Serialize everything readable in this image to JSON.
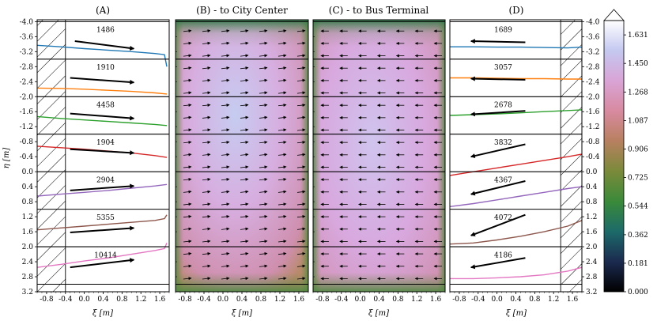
{
  "figure": {
    "panel_titles": [
      "(A)",
      "(B) - to City Center",
      "(C) - to Bus Terminal",
      "(D)"
    ],
    "ylabel": "η [m]",
    "xlabel": "ξ [m]",
    "colorbar": {
      "ticks": [
        "0.000",
        "0.181",
        "0.362",
        "0.544",
        "0.725",
        "0.906",
        "1.087",
        "1.268",
        "1.450",
        "1.631"
      ],
      "min": 0.0,
      "max": 1.722,
      "extend": "max",
      "colormap_stops": [
        "#000000",
        "#1b2a4f",
        "#1d6a6a",
        "#3a8a3a",
        "#7a8a3a",
        "#b88060",
        "#d88aa0",
        "#d9a4d6",
        "#c4c8f0",
        "#ffffff"
      ]
    }
  },
  "chart_data": [
    {
      "type": "line",
      "panel": "A",
      "title": "(A)",
      "xlabel": "ξ [m]",
      "ylabel": "η [m]",
      "xticks": [
        "-0.8",
        "-0.4",
        "0.0",
        "0.4",
        "0.8",
        "1.2",
        "1.6"
      ],
      "xlim": [
        -1.0,
        1.8
      ],
      "yticks": [
        "-4.0",
        "-3.6",
        "-3.2",
        "-2.8",
        "-2.4",
        "-2.0",
        "-1.6",
        "-1.2",
        "-0.8",
        "-0.4",
        "0.0",
        "0.4",
        "0.8",
        "1.2",
        "1.6",
        "2.0",
        "2.4",
        "2.8",
        "3.2"
      ],
      "ylim": [
        -4.05,
        3.2
      ],
      "lane_boundaries": [
        -4.0,
        -3.0,
        -2.0,
        -1.0,
        0.0,
        1.0,
        2.0,
        3.0
      ],
      "hatch_region": [
        -1.0,
        -0.4
      ],
      "series": [
        {
          "name": "lane1",
          "count": "1486",
          "color": "#1f77b4",
          "x": [
            -1.0,
            -0.5,
            0.0,
            0.5,
            1.0,
            1.5,
            1.7,
            1.75
          ],
          "y": [
            -3.37,
            -3.33,
            -3.28,
            -3.24,
            -3.2,
            -3.15,
            -3.12,
            -2.8
          ],
          "arrow_x": [
            -0.2,
            1.05
          ],
          "arrow_y": [
            -3.48,
            -3.28
          ],
          "arrow_dir": "right"
        },
        {
          "name": "lane2",
          "count": "1910",
          "color": "#ff7f0e",
          "x": [
            -1.0,
            -0.5,
            0.0,
            0.5,
            1.0,
            1.5,
            1.75
          ],
          "y": [
            -2.23,
            -2.22,
            -2.2,
            -2.17,
            -2.14,
            -2.1,
            -2.07
          ],
          "arrow_x": [
            -0.3,
            1.05
          ],
          "arrow_y": [
            -2.5,
            -2.38
          ],
          "arrow_dir": "right"
        },
        {
          "name": "lane3",
          "count": "4458",
          "color": "#2ca02c",
          "x": [
            -1.0,
            -0.5,
            0.0,
            0.5,
            1.0,
            1.5,
            1.75
          ],
          "y": [
            -1.47,
            -1.42,
            -1.38,
            -1.34,
            -1.3,
            -1.26,
            -1.23
          ],
          "arrow_x": [
            -0.3,
            1.05
          ],
          "arrow_y": [
            -1.55,
            -1.42
          ],
          "arrow_dir": "right"
        },
        {
          "name": "lane4",
          "count": "1904",
          "color": "#d62728",
          "x": [
            -1.0,
            -0.5,
            0.0,
            0.5,
            1.0,
            1.5,
            1.75
          ],
          "y": [
            -0.68,
            -0.64,
            -0.6,
            -0.55,
            -0.5,
            -0.43,
            -0.38
          ],
          "arrow_x": [
            -0.3,
            1.05
          ],
          "arrow_y": [
            -0.6,
            -0.5
          ],
          "arrow_dir": "right"
        },
        {
          "name": "lane5",
          "count": "2904",
          "color": "#9467bd",
          "x": [
            -1.0,
            -0.5,
            0.0,
            0.5,
            1.0,
            1.5,
            1.75
          ],
          "y": [
            0.65,
            0.6,
            0.55,
            0.5,
            0.44,
            0.38,
            0.34
          ],
          "arrow_x": [
            -0.3,
            1.05
          ],
          "arrow_y": [
            0.5,
            0.38
          ],
          "arrow_dir": "right"
        },
        {
          "name": "lane6",
          "count": "5355",
          "color": "#8c564b",
          "x": [
            -1.0,
            -0.5,
            0.0,
            0.5,
            1.0,
            1.5,
            1.7,
            1.75
          ],
          "y": [
            1.55,
            1.5,
            1.45,
            1.4,
            1.35,
            1.3,
            1.25,
            1.15
          ],
          "arrow_x": [
            -0.3,
            1.05
          ],
          "arrow_y": [
            1.62,
            1.5
          ],
          "arrow_dir": "right"
        },
        {
          "name": "lane7",
          "count": "10414",
          "color": "#e377c2",
          "x": [
            -1.0,
            -0.5,
            0.0,
            0.5,
            1.0,
            1.5,
            1.7,
            1.75
          ],
          "y": [
            2.55,
            2.47,
            2.38,
            2.3,
            2.2,
            2.1,
            2.05,
            1.9
          ],
          "arrow_x": [
            -0.3,
            1.05
          ],
          "arrow_y": [
            2.55,
            2.35
          ],
          "arrow_dir": "right"
        }
      ]
    },
    {
      "type": "heatmap",
      "panel": "B",
      "title": "(B) - to City Center",
      "xlabel": "ξ [m]",
      "xticks": [
        "-0.8",
        "-0.4",
        "0.0",
        "0.4",
        "0.8",
        "1.2",
        "1.6"
      ],
      "xlim": [
        -1.0,
        1.8
      ],
      "yticks": [
        "-4.0",
        "-3.6",
        "-3.2",
        "-2.8",
        "-2.4",
        "-2.0",
        "-1.6",
        "-1.2",
        "-0.8",
        "-0.4",
        "0.0",
        "0.4",
        "0.8",
        "1.2",
        "1.6",
        "2.0",
        "2.4",
        "2.8",
        "3.2"
      ],
      "ylim": [
        -4.05,
        3.2
      ],
      "lane_boundaries": [
        -4.0,
        -3.0,
        -2.0,
        -1.0,
        0.0,
        1.0,
        2.0,
        3.0
      ],
      "value_range": [
        0.6,
        1.5
      ],
      "quiver_direction": "right, slightly rising"
    },
    {
      "type": "heatmap",
      "panel": "C",
      "title": "(C) - to Bus Terminal",
      "xlabel": "ξ [m]",
      "xticks": [
        "-0.8",
        "-0.4",
        "0.0",
        "0.4",
        "0.8",
        "1.2",
        "1.6"
      ],
      "xlim": [
        -1.0,
        1.8
      ],
      "yticks": [
        "-4.0",
        "-3.6",
        "-3.2",
        "-2.8",
        "-2.4",
        "-2.0",
        "-1.6",
        "-1.2",
        "-0.8",
        "-0.4",
        "0.0",
        "0.4",
        "0.8",
        "1.2",
        "1.6",
        "2.0",
        "2.4",
        "2.8",
        "3.2"
      ],
      "ylim": [
        -4.05,
        3.2
      ],
      "lane_boundaries": [
        -4.0,
        -3.0,
        -2.0,
        -1.0,
        0.0,
        1.0,
        2.0,
        3.0
      ],
      "value_range": [
        0.6,
        1.5
      ],
      "quiver_direction": "left"
    },
    {
      "type": "line",
      "panel": "D",
      "title": "(D)",
      "xlabel": "ξ [m]",
      "xticks": [
        "-0.8",
        "-0.4",
        "0.0",
        "0.4",
        "0.8",
        "1.2",
        "1.6"
      ],
      "xlim": [
        -1.0,
        1.8
      ],
      "yticks": [
        "-4.0",
        "-3.6",
        "-3.2",
        "-2.8",
        "-2.4",
        "-2.0",
        "-1.6",
        "-1.2",
        "-0.8",
        "-0.4",
        "0.0",
        "0.4",
        "0.8",
        "1.2",
        "1.6",
        "2.0",
        "2.4",
        "2.8",
        "3.2"
      ],
      "ylim": [
        -4.05,
        3.2
      ],
      "lane_boundaries": [
        -4.0,
        -3.0,
        -2.0,
        -1.0,
        0.0,
        1.0,
        2.0,
        3.0
      ],
      "hatch_region": [
        1.35,
        1.8
      ],
      "series": [
        {
          "name": "lane1",
          "count": "1689",
          "color": "#1f77b4",
          "x": [
            -1.0,
            -0.5,
            0.0,
            0.5,
            1.0,
            1.5,
            1.8
          ],
          "y": [
            -3.33,
            -3.33,
            -3.32,
            -3.32,
            -3.31,
            -3.3,
            -3.32
          ],
          "arrow_x": [
            0.6,
            -0.55
          ],
          "arrow_y": [
            -3.45,
            -3.48
          ],
          "arrow_dir": "left"
        },
        {
          "name": "lane2",
          "count": "3057",
          "color": "#ff7f0e",
          "x": [
            -1.0,
            -0.5,
            0.0,
            0.5,
            1.0,
            1.5,
            1.8
          ],
          "y": [
            -2.5,
            -2.5,
            -2.49,
            -2.48,
            -2.48,
            -2.47,
            -2.47
          ],
          "arrow_x": [
            0.6,
            -0.55
          ],
          "arrow_y": [
            -2.45,
            -2.48
          ],
          "arrow_dir": "left"
        },
        {
          "name": "lane3",
          "count": "2678",
          "color": "#2ca02c",
          "x": [
            -1.0,
            -0.5,
            0.0,
            0.5,
            1.0,
            1.5,
            1.8
          ],
          "y": [
            -1.5,
            -1.52,
            -1.54,
            -1.57,
            -1.6,
            -1.63,
            -1.65
          ],
          "arrow_x": [
            0.6,
            -0.55
          ],
          "arrow_y": [
            -1.62,
            -1.53
          ],
          "arrow_dir": "left"
        },
        {
          "name": "lane4",
          "count": "3832",
          "color": "#d62728",
          "x": [
            -1.0,
            -0.5,
            0.0,
            0.5,
            1.0,
            1.5,
            1.8
          ],
          "y": [
            0.1,
            0.0,
            -0.1,
            -0.2,
            -0.3,
            -0.4,
            -0.47
          ],
          "arrow_x": [
            0.6,
            -0.55
          ],
          "arrow_y": [
            -0.73,
            -0.4
          ],
          "arrow_dir": "left"
        },
        {
          "name": "lane5",
          "count": "4367",
          "color": "#9467bd",
          "x": [
            -1.0,
            -0.5,
            0.0,
            0.5,
            1.0,
            1.5,
            1.8
          ],
          "y": [
            0.93,
            0.85,
            0.75,
            0.65,
            0.55,
            0.45,
            0.4
          ],
          "arrow_x": [
            0.6,
            -0.55
          ],
          "arrow_y": [
            0.25,
            0.6
          ],
          "arrow_dir": "left"
        },
        {
          "name": "lane6",
          "count": "4072",
          "color": "#8c564b",
          "x": [
            -1.0,
            -0.5,
            0.0,
            0.5,
            1.0,
            1.5,
            1.8
          ],
          "y": [
            1.93,
            1.9,
            1.82,
            1.72,
            1.6,
            1.45,
            1.3
          ],
          "arrow_x": [
            0.6,
            -0.55
          ],
          "arrow_y": [
            1.15,
            1.7
          ],
          "arrow_dir": "left"
        },
        {
          "name": "lane7",
          "count": "4186",
          "color": "#e377c2",
          "x": [
            -1.0,
            -0.5,
            0.0,
            0.5,
            1.0,
            1.5,
            1.8
          ],
          "y": [
            2.85,
            2.85,
            2.83,
            2.8,
            2.75,
            2.65,
            2.55
          ],
          "arrow_x": [
            0.6,
            -0.55
          ],
          "arrow_y": [
            2.3,
            2.55
          ],
          "arrow_dir": "left"
        }
      ]
    }
  ]
}
